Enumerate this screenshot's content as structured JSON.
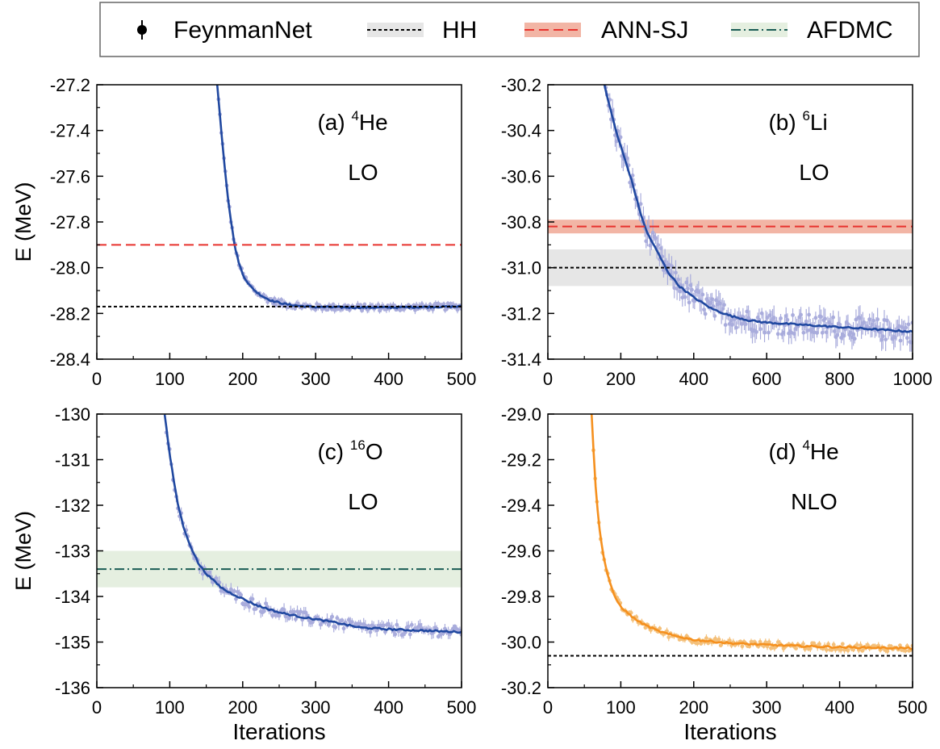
{
  "legend": {
    "items": [
      {
        "label": "FeynmanNet",
        "kind": "marker",
        "color": "#000000"
      },
      {
        "label": "HH",
        "kind": "band-dashed",
        "line_color": "#000000",
        "band_color": "#e6e6e6"
      },
      {
        "label": "ANN-SJ",
        "kind": "band-dashed",
        "line_color": "#e8322d",
        "band_color": "#f2b5a5"
      },
      {
        "label": "AFDMC",
        "kind": "band-dashdot",
        "line_color": "#1a5c55",
        "band_color": "#e5efe0"
      }
    ]
  },
  "colors": {
    "feynmannet_lo_line": "#2048a0",
    "feynmannet_lo_points": "#a9acdc",
    "feynmannet_nlo_line": "#f5901e",
    "feynmannet_nlo_points": "#f4c07a"
  },
  "panels": [
    {
      "id": "a",
      "label_prefix": "(a) ",
      "label_sup": "4",
      "label_element": "He",
      "order": "LO"
    },
    {
      "id": "b",
      "label_prefix": "(b) ",
      "label_sup": "6",
      "label_element": "Li",
      "order": "LO"
    },
    {
      "id": "c",
      "label_prefix": "(c) ",
      "label_sup": "16",
      "label_element": "O",
      "order": "LO"
    },
    {
      "id": "d",
      "label_prefix": "(d) ",
      "label_sup": "4",
      "label_element": "He",
      "order": "NLO"
    }
  ],
  "chart_data": [
    {
      "type": "line",
      "panel": "a",
      "xlabel": "",
      "ylabel": "E (MeV)",
      "xlim": [
        0,
        500
      ],
      "ylim": [
        -28.4,
        -27.2
      ],
      "xticks": [
        0,
        100,
        200,
        300,
        400,
        500
      ],
      "yticks": [
        -28.4,
        -28.2,
        -28.0,
        -27.8,
        -27.6,
        -27.4,
        -27.2
      ],
      "ytick_labels": [
        "-28.4",
        "-28.2",
        "-28.0",
        "-27.8",
        "-27.6",
        "-27.4",
        "-27.2"
      ],
      "series": [
        {
          "name": "FeynmanNet",
          "color": "#2048a0",
          "x": [
            165,
            170,
            175,
            180,
            185,
            190,
            195,
            200,
            210,
            220,
            230,
            240,
            260,
            280,
            300,
            350,
            400,
            450,
            500
          ],
          "y": [
            -27.2,
            -27.38,
            -27.55,
            -27.7,
            -27.82,
            -27.92,
            -27.98,
            -28.03,
            -28.08,
            -28.11,
            -28.13,
            -28.145,
            -28.16,
            -28.168,
            -28.172,
            -28.174,
            -28.174,
            -28.172,
            -28.17
          ]
        }
      ],
      "reference_lines": [
        {
          "name": "ANN-SJ",
          "value": -27.9,
          "band": null
        },
        {
          "name": "HH",
          "value": -28.17,
          "band": null
        }
      ]
    },
    {
      "type": "line",
      "panel": "b",
      "xlabel": "",
      "ylabel": "",
      "xlim": [
        0,
        1000
      ],
      "ylim": [
        -31.4,
        -30.2
      ],
      "xticks": [
        0,
        200,
        400,
        600,
        800,
        1000
      ],
      "yticks": [
        -31.4,
        -31.2,
        -31.0,
        -30.8,
        -30.6,
        -30.4,
        -30.2
      ],
      "ytick_labels": [
        "-31.4",
        "-31.2",
        "-31.0",
        "-30.8",
        "-30.6",
        "-30.4",
        "-30.2"
      ],
      "series": [
        {
          "name": "FeynmanNet",
          "color": "#2048a0",
          "x": [
            155,
            170,
            190,
            210,
            230,
            250,
            270,
            300,
            330,
            360,
            400,
            450,
            500,
            550,
            600,
            650,
            700,
            750,
            800,
            850,
            900,
            950,
            1000
          ],
          "y": [
            -30.2,
            -30.3,
            -30.42,
            -30.52,
            -30.62,
            -30.74,
            -30.84,
            -30.93,
            -31.02,
            -31.08,
            -31.13,
            -31.18,
            -31.21,
            -31.23,
            -31.24,
            -31.245,
            -31.25,
            -31.255,
            -31.26,
            -31.265,
            -31.27,
            -31.275,
            -31.28
          ]
        }
      ],
      "reference_lines": [
        {
          "name": "ANN-SJ",
          "value": -30.82,
          "band": [
            -30.85,
            -30.79
          ]
        },
        {
          "name": "HH",
          "value": -31.0,
          "band": [
            -31.08,
            -30.92
          ]
        }
      ]
    },
    {
      "type": "line",
      "panel": "c",
      "xlabel": "Iterations",
      "ylabel": "E (MeV)",
      "xlim": [
        0,
        500
      ],
      "ylim": [
        -136,
        -130
      ],
      "xticks": [
        0,
        100,
        200,
        300,
        400,
        500
      ],
      "yticks": [
        -136,
        -135,
        -134,
        -133,
        -132,
        -131,
        -130
      ],
      "ytick_labels": [
        "-136",
        "-135",
        "-134",
        "-133",
        "-132",
        "-131",
        "-130"
      ],
      "series": [
        {
          "name": "FeynmanNet",
          "color": "#2048a0",
          "x": [
            93,
            100,
            110,
            120,
            130,
            140,
            150,
            160,
            170,
            180,
            200,
            220,
            250,
            280,
            300,
            330,
            360,
            400,
            450,
            500
          ],
          "y": [
            -130.0,
            -130.9,
            -131.9,
            -132.55,
            -132.95,
            -133.3,
            -133.5,
            -133.65,
            -133.8,
            -133.9,
            -134.05,
            -134.2,
            -134.35,
            -134.45,
            -134.5,
            -134.58,
            -134.68,
            -134.72,
            -134.75,
            -134.78
          ]
        }
      ],
      "reference_lines": [
        {
          "name": "AFDMC",
          "value": -133.4,
          "band": [
            -133.8,
            -133.0
          ]
        }
      ]
    },
    {
      "type": "line",
      "panel": "d",
      "xlabel": "Iterations",
      "ylabel": "",
      "xlim": [
        0,
        500
      ],
      "ylim": [
        -30.2,
        -29.0
      ],
      "xticks": [
        0,
        100,
        200,
        300,
        400,
        500
      ],
      "yticks": [
        -30.2,
        -30.0,
        -29.8,
        -29.6,
        -29.4,
        -29.2,
        -29.0
      ],
      "ytick_labels": [
        "-30.2",
        "-30.0",
        "-29.8",
        "-29.6",
        "-29.4",
        "-29.2",
        "-29.0"
      ],
      "series": [
        {
          "name": "FeynmanNet",
          "color": "#f5901e",
          "x": [
            60,
            65,
            70,
            75,
            80,
            85,
            90,
            95,
            100,
            110,
            120,
            130,
            140,
            150,
            170,
            200,
            250,
            300,
            350,
            400,
            450,
            500
          ],
          "y": [
            -29.0,
            -29.3,
            -29.48,
            -29.6,
            -29.68,
            -29.74,
            -29.79,
            -29.82,
            -29.845,
            -29.875,
            -29.9,
            -29.92,
            -29.935,
            -29.95,
            -29.97,
            -29.99,
            -30.005,
            -30.012,
            -30.018,
            -30.022,
            -30.025,
            -30.027
          ]
        }
      ],
      "reference_lines": [
        {
          "name": "HH",
          "value": -30.06,
          "band": null
        }
      ]
    }
  ]
}
